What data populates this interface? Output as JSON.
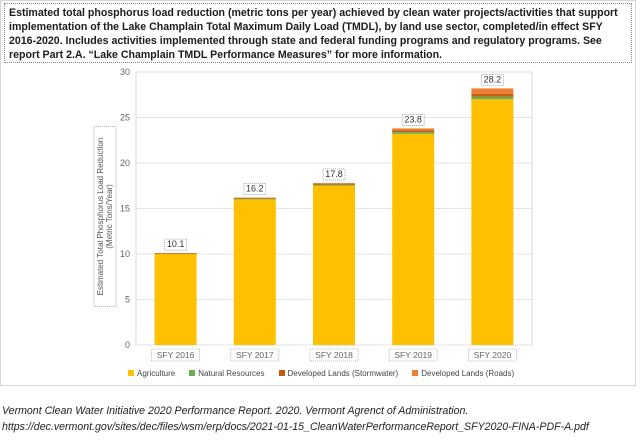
{
  "header": {
    "text": "Estimated total phosphorus load reduction (metric tons per year) achieved by clean water projects/activities that support implementation of the Lake Champlain Total Maximum Daily Load (TMDL), by land use sector, completed/in effect SFY 2016-2020. Includes activities implemented through state and federal funding programs and regulatory programs. See report Part 2.A. “Lake Champlain TMDL Performance Measures” for more information."
  },
  "caption": {
    "line1": "Vermont Clean Water Initiative 2020 Performance Report. 2020. Vermont Agrenct of Administration.",
    "line2": "https://dec.vermont.gov/sites/dec/files/wsm/erp/docs/2021-01-15_CleanWaterPerformanceReport_SFY2020-FINA-PDF-A.pdf"
  },
  "colors": {
    "agriculture": "#ffc000",
    "natural_resources": "#70ad47",
    "developed_stormwater": "#c55a11",
    "developed_roads": "#ed7d31",
    "grid": "#e3e3e3",
    "axis_text": "#666666"
  },
  "chart_data": {
    "type": "bar",
    "stacked": true,
    "categories": [
      "SFY 2016",
      "SFY 2017",
      "SFY 2018",
      "SFY 2019",
      "SFY 2020"
    ],
    "series": [
      {
        "name": "Agriculture",
        "values": [
          10.0,
          16.0,
          17.5,
          23.2,
          27.0
        ]
      },
      {
        "name": "Natural Resources",
        "values": [
          0.05,
          0.1,
          0.1,
          0.2,
          0.3
        ]
      },
      {
        "name": "Developed Lands (Stormwater)",
        "values": [
          0.02,
          0.05,
          0.1,
          0.2,
          0.3
        ]
      },
      {
        "name": "Developed Lands (Roads)",
        "values": [
          0.03,
          0.05,
          0.1,
          0.2,
          0.6
        ]
      }
    ],
    "totals": [
      "10.1",
      "16.2",
      "17.8",
      "23.8",
      "28.2"
    ],
    "ylabel_line1": "Estimated Total Phosphorus Load Reduction",
    "ylabel_line2": "(Metric Tons/Year)",
    "ylim": [
      0,
      30
    ],
    "yticks": [
      "0",
      "5",
      "10",
      "15",
      "20",
      "25",
      "30"
    ],
    "grid": true,
    "legend_position": "bottom"
  }
}
